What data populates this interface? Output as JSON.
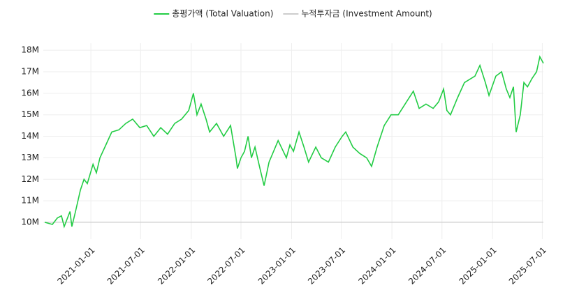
{
  "chart_data": {
    "type": "line",
    "legend_position": "top",
    "grid": true,
    "x": [
      "2020-07-17",
      "2020-08-14",
      "2020-09-01",
      "2020-09-16",
      "2020-09-26",
      "2020-10-17",
      "2020-10-24",
      "2020-11-06",
      "2020-11-24",
      "2020-12-07",
      "2020-12-19",
      "2021-01-09",
      "2021-01-21",
      "2021-02-03",
      "2021-02-21",
      "2021-03-18",
      "2021-04-13",
      "2021-05-08",
      "2021-06-02",
      "2021-06-28",
      "2021-07-23",
      "2021-08-18",
      "2021-09-12",
      "2021-10-07",
      "2021-11-02",
      "2021-11-27",
      "2021-12-23",
      "2022-01-09",
      "2022-01-22",
      "2022-02-06",
      "2022-02-24",
      "2022-03-09",
      "2022-04-03",
      "2022-04-29",
      "2022-05-24",
      "2022-06-13",
      "2022-06-18",
      "2022-07-01",
      "2022-07-14",
      "2022-07-27",
      "2022-08-08",
      "2022-08-21",
      "2022-09-08",
      "2022-09-23",
      "2022-10-11",
      "2022-11-13",
      "2022-12-13",
      "2022-12-26",
      "2023-01-08",
      "2023-01-28",
      "2023-02-15",
      "2023-03-04",
      "2023-03-30",
      "2023-04-19",
      "2023-05-15",
      "2023-06-09",
      "2023-07-04",
      "2023-07-17",
      "2023-08-12",
      "2023-09-06",
      "2023-10-01",
      "2023-10-19",
      "2023-11-08",
      "2023-12-04",
      "2023-12-29",
      "2024-01-24",
      "2024-02-18",
      "2024-03-19",
      "2024-04-09",
      "2024-05-04",
      "2024-05-30",
      "2024-06-19",
      "2024-07-07",
      "2024-07-19",
      "2024-08-01",
      "2024-08-27",
      "2024-09-21",
      "2024-10-29",
      "2024-11-16",
      "2024-12-06",
      "2024-12-19",
      "2025-01-13",
      "2025-02-03",
      "2025-02-20",
      "2025-03-05",
      "2025-03-18",
      "2025-03-28",
      "2025-04-12",
      "2025-04-25",
      "2025-05-08",
      "2025-05-25",
      "2025-06-10",
      "2025-06-22",
      "2025-07-05"
    ],
    "series": [
      {
        "name": "총평가액 (Total Valuation)",
        "color": "#22cc44",
        "values": [
          10000000,
          9900000,
          10200000,
          10300000,
          9800000,
          10500000,
          9800000,
          10500000,
          11500000,
          12000000,
          11800000,
          12700000,
          12300000,
          13000000,
          13500000,
          14200000,
          14300000,
          14600000,
          14800000,
          14400000,
          14500000,
          14000000,
          14400000,
          14100000,
          14600000,
          14800000,
          15200000,
          16000000,
          15000000,
          15500000,
          14800000,
          14200000,
          14600000,
          14000000,
          14500000,
          13000000,
          12500000,
          13000000,
          13300000,
          14000000,
          13000000,
          13500000,
          12500000,
          11700000,
          12800000,
          13800000,
          13000000,
          13600000,
          13300000,
          14200000,
          13500000,
          12800000,
          13500000,
          13000000,
          12800000,
          13500000,
          14000000,
          14200000,
          13500000,
          13200000,
          13000000,
          12600000,
          13500000,
          14500000,
          15000000,
          15000000,
          15500000,
          16100000,
          15300000,
          15500000,
          15300000,
          15600000,
          16200000,
          15200000,
          15000000,
          15800000,
          16500000,
          16800000,
          17300000,
          16500000,
          15900000,
          16800000,
          17000000,
          16200000,
          15800000,
          16300000,
          14200000,
          15000000,
          16500000,
          16300000,
          16700000,
          17000000,
          17700000,
          17400000
        ]
      },
      {
        "name": "누적투자금 (Investment Amount)",
        "color": "#cccccc",
        "x": [
          "2020-07-17",
          "2025-07-05"
        ],
        "values": [
          10000000,
          10000000
        ]
      }
    ],
    "xlim": [
      "2020-07-12",
      "2025-07-05"
    ],
    "xticks": [
      "2021-01-01",
      "2021-07-01",
      "2022-01-01",
      "2022-07-01",
      "2023-01-01",
      "2023-07-01",
      "2024-01-01",
      "2024-07-01",
      "2025-01-01",
      "2025-07-01"
    ],
    "ylim": [
      9220000,
      18330000
    ],
    "yticks": [
      {
        "value": 10000000,
        "label": "10M"
      },
      {
        "value": 11000000,
        "label": "11M"
      },
      {
        "value": 12000000,
        "label": "12M"
      },
      {
        "value": 13000000,
        "label": "13M"
      },
      {
        "value": 14000000,
        "label": "14M"
      },
      {
        "value": 15000000,
        "label": "15M"
      },
      {
        "value": 16000000,
        "label": "16M"
      },
      {
        "value": 17000000,
        "label": "17M"
      },
      {
        "value": 18000000,
        "label": "18M"
      }
    ]
  }
}
